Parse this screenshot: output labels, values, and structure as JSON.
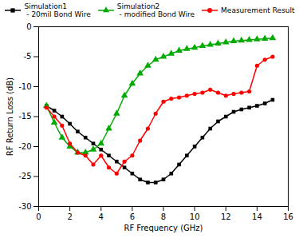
{
  "chart_data": {
    "type": "line",
    "xlabel": "RF Frequency (GHz)",
    "ylabel": "RF Return Loss (dB)",
    "x": [
      0.5,
      1.0,
      1.5,
      2.0,
      2.5,
      3.0,
      3.5,
      4.0,
      4.5,
      5.0,
      5.5,
      6.0,
      6.5,
      7.0,
      7.5,
      8.0,
      8.5,
      9.0,
      9.5,
      10.0,
      10.5,
      11.0,
      11.5,
      12.0,
      12.5,
      13.0,
      13.5,
      14.0,
      14.5,
      15.0
    ],
    "series": [
      {
        "name": "Simulation1\n - 20mil Bond Wire",
        "color": "#000000",
        "marker": "square",
        "values": [
          -13.2,
          -14.0,
          -15.0,
          -16.2,
          -17.5,
          -18.5,
          -19.5,
          -20.5,
          -21.5,
          -22.5,
          -23.5,
          -24.5,
          -25.5,
          -26.0,
          -26.0,
          -25.5,
          -24.5,
          -23.0,
          -21.5,
          -20.0,
          -18.5,
          -17.0,
          -15.8,
          -15.0,
          -14.2,
          -13.8,
          -13.5,
          -13.2,
          -12.8,
          -12.2
        ]
      },
      {
        "name": "Simulation2\n - modified Bond Wire",
        "color": "#00aa00",
        "marker": "triangle",
        "values": [
          -13.2,
          -16.0,
          -18.5,
          -20.0,
          -21.0,
          -21.0,
          -20.5,
          -19.5,
          -17.0,
          -14.5,
          -11.5,
          -9.5,
          -7.8,
          -6.5,
          -5.5,
          -5.0,
          -4.5,
          -4.0,
          -3.7,
          -3.5,
          -3.2,
          -3.0,
          -2.8,
          -2.6,
          -2.4,
          -2.3,
          -2.2,
          -2.1,
          -2.0,
          -1.9
        ]
      },
      {
        "name": "Measurement Result",
        "color": "#ff0000",
        "marker": "circle",
        "values": [
          -13.5,
          -15.0,
          -16.5,
          -19.5,
          -21.0,
          -21.5,
          -23.0,
          -21.5,
          -23.5,
          -24.5,
          -22.5,
          -21.5,
          -19.0,
          -17.0,
          -14.5,
          -12.5,
          -12.0,
          -11.8,
          -11.5,
          -11.2,
          -11.0,
          -10.5,
          -11.0,
          -11.5,
          -11.2,
          -11.0,
          -10.8,
          -6.5,
          -5.5,
          -5.0
        ]
      }
    ],
    "xlim": [
      0,
      16
    ],
    "ylim": [
      -30,
      0
    ],
    "xticks": [
      0,
      2,
      4,
      6,
      8,
      10,
      12,
      14,
      16
    ],
    "yticks": [
      0,
      -5,
      -10,
      -15,
      -20,
      -25,
      -30
    ],
    "grid": false
  }
}
